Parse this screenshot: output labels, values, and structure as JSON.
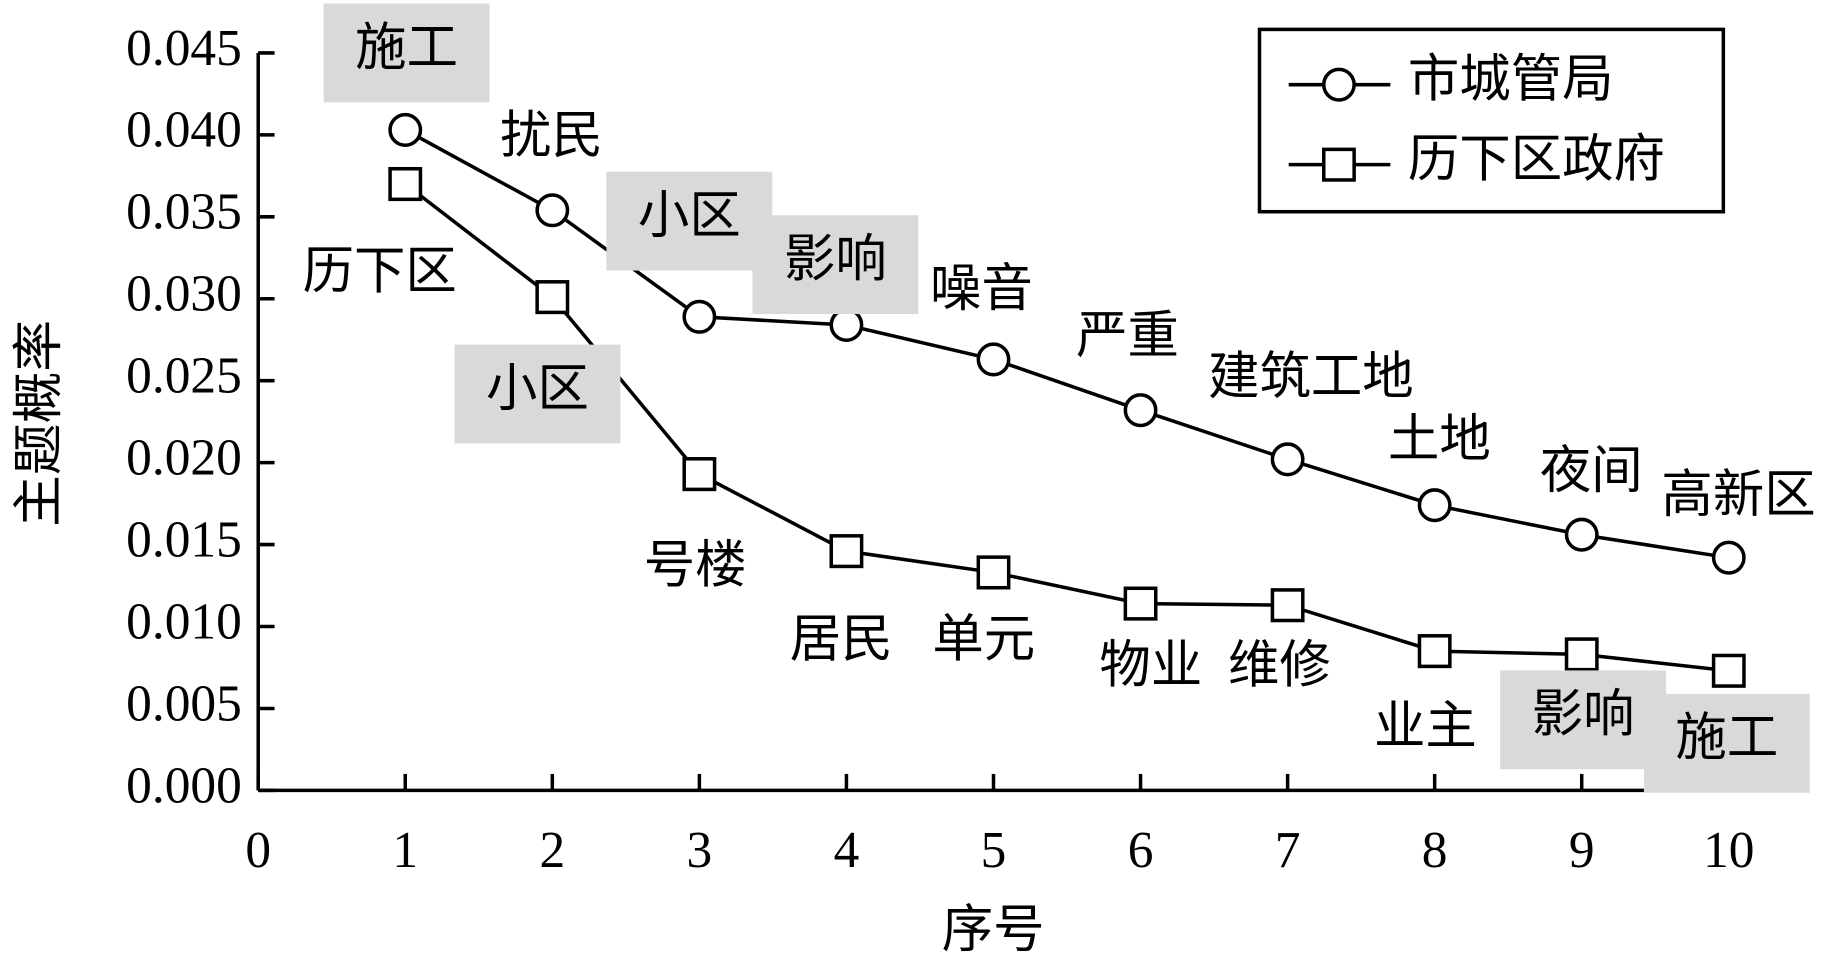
{
  "chart_data": {
    "type": "line",
    "xlabel": "序号",
    "ylabel": "主题概率",
    "x": [
      1,
      2,
      3,
      4,
      5,
      6,
      7,
      8,
      9,
      10
    ],
    "xlim": [
      0,
      10.4
    ],
    "xticks": [
      0,
      1,
      2,
      3,
      4,
      5,
      6,
      7,
      8,
      9,
      10
    ],
    "ylim": [
      0,
      0.045
    ],
    "yticks": [
      {
        "value": 0,
        "label": "0.000"
      },
      {
        "value": 0.005,
        "label": "0.005"
      },
      {
        "value": 0.01,
        "label": "0.010"
      },
      {
        "value": 0.015,
        "label": "0.015"
      },
      {
        "value": 0.02,
        "label": "0.020"
      },
      {
        "value": 0.025,
        "label": "0.025"
      },
      {
        "value": 0.03,
        "label": "0.030"
      },
      {
        "value": 0.035,
        "label": "0.035"
      },
      {
        "value": 0.04,
        "label": "0.040"
      },
      {
        "value": 0.045,
        "label": "0.045"
      }
    ],
    "legend": "upper right",
    "series": [
      {
        "name": "市城管局",
        "color": "#000000",
        "marker": "circle",
        "values": [
          0.0403,
          0.0354,
          0.0289,
          0.0284,
          0.0263,
          0.0232,
          0.0202,
          0.0174,
          0.0156,
          0.0142
        ],
        "point_labels": [
          "施工",
          "扰民",
          "小区",
          "影响",
          "噪音",
          "严重",
          "建筑工地",
          "土地",
          "夜间",
          "高新区"
        ],
        "highlighted": [
          true,
          false,
          true,
          true,
          false,
          false,
          false,
          false,
          false,
          false
        ]
      },
      {
        "name": "历下区政府",
        "color": "#000000",
        "marker": "square",
        "values": [
          0.037,
          0.0301,
          0.0193,
          0.0146,
          0.0133,
          0.0114,
          0.0113,
          0.0085,
          0.0083,
          0.0073
        ],
        "point_labels": [
          "历下区",
          "小区",
          "号楼",
          "居民",
          "单元",
          "物业",
          "维修",
          "业主",
          "影响",
          "施工"
        ],
        "highlighted": [
          false,
          true,
          false,
          false,
          false,
          false,
          false,
          false,
          true,
          true
        ]
      }
    ]
  }
}
